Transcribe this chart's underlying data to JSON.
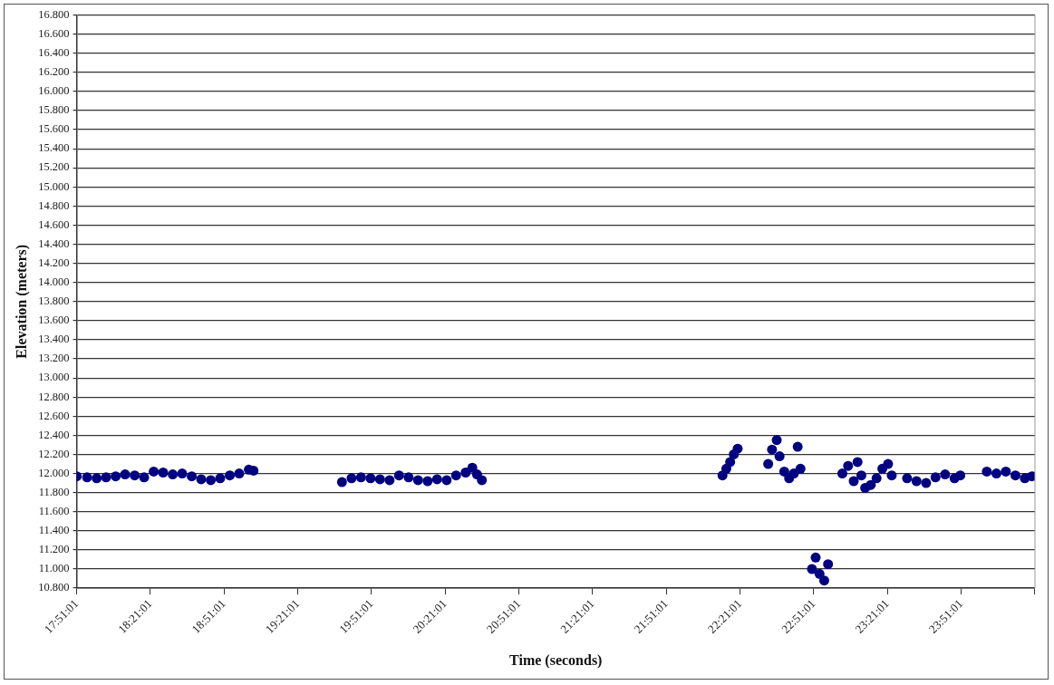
{
  "chart_data": {
    "type": "scatter",
    "xlabel": "Time (seconds)",
    "ylabel": "Elevation (meters)",
    "xlim": [
      17.8503,
      24.3503
    ],
    "xticks": [
      {
        "value": 17.8503,
        "label": "17:51:01"
      },
      {
        "value": 18.3503,
        "label": "18:21:01"
      },
      {
        "value": 18.8503,
        "label": "18:51:01"
      },
      {
        "value": 19.3503,
        "label": "19:21:01"
      },
      {
        "value": 19.8503,
        "label": "19:51:01"
      },
      {
        "value": 20.3503,
        "label": "20:21:01"
      },
      {
        "value": 20.8503,
        "label": "20:51:01"
      },
      {
        "value": 21.3503,
        "label": "21:21:01"
      },
      {
        "value": 21.8503,
        "label": "21:51:01"
      },
      {
        "value": 22.3503,
        "label": "22:21:01"
      },
      {
        "value": 22.8503,
        "label": "22:51:01"
      },
      {
        "value": 23.3503,
        "label": "23:21:01"
      },
      {
        "value": 23.8503,
        "label": "23:51:01"
      },
      {
        "value": 24.3503,
        "label": null
      }
    ],
    "ylim": [
      10.8,
      16.8
    ],
    "yticks": [
      {
        "value": 10.8,
        "label": "10.800"
      },
      {
        "value": 11.0,
        "label": "11.000"
      },
      {
        "value": 11.2,
        "label": "11.200"
      },
      {
        "value": 11.4,
        "label": "11.400"
      },
      {
        "value": 11.6,
        "label": "11.600"
      },
      {
        "value": 11.8,
        "label": "11.800"
      },
      {
        "value": 12.0,
        "label": "12.000"
      },
      {
        "value": 12.2,
        "label": "12.200"
      },
      {
        "value": 12.4,
        "label": "12.400"
      },
      {
        "value": 12.6,
        "label": "12.600"
      },
      {
        "value": 12.8,
        "label": "12.800"
      },
      {
        "value": 13.0,
        "label": "13.000"
      },
      {
        "value": 13.2,
        "label": "13.200"
      },
      {
        "value": 13.4,
        "label": "13.400"
      },
      {
        "value": 13.6,
        "label": "13.600"
      },
      {
        "value": 13.8,
        "label": "13.800"
      },
      {
        "value": 14.0,
        "label": "14.000"
      },
      {
        "value": 14.2,
        "label": "14.200"
      },
      {
        "value": 14.4,
        "label": "14.400"
      },
      {
        "value": 14.6,
        "label": "14.600"
      },
      {
        "value": 14.8,
        "label": "14.800"
      },
      {
        "value": 15.0,
        "label": "15.000"
      },
      {
        "value": 15.2,
        "label": "15.200"
      },
      {
        "value": 15.4,
        "label": "15.400"
      },
      {
        "value": 15.6,
        "label": "15.600"
      },
      {
        "value": 15.8,
        "label": "15.800"
      },
      {
        "value": 16.0,
        "label": "16.000"
      },
      {
        "value": 16.2,
        "label": "16.200"
      },
      {
        "value": 16.4,
        "label": "16.400"
      },
      {
        "value": 16.6,
        "label": "16.600"
      },
      {
        "value": 16.8,
        "label": "16.800"
      }
    ],
    "grid": "y",
    "marker": "circle",
    "legend": false,
    "series": [
      {
        "color": "#000080",
        "x": [
          17.851,
          17.921,
          17.986,
          18.05,
          18.115,
          18.179,
          18.244,
          18.308,
          18.373,
          18.437,
          18.502,
          18.566,
          18.631,
          18.695,
          18.76,
          18.824,
          18.889,
          18.953,
          19.018,
          19.05,
          19.65,
          19.715,
          19.779,
          19.844,
          19.908,
          19.973,
          20.037,
          20.102,
          20.166,
          20.231,
          20.295,
          20.36,
          20.424,
          20.489,
          20.534,
          20.566,
          20.599,
          22.231,
          22.257,
          22.283,
          22.308,
          22.334,
          22.541,
          22.567,
          22.599,
          22.618,
          22.65,
          22.683,
          22.715,
          22.741,
          22.76,
          22.838,
          22.863,
          22.889,
          22.921,
          22.947,
          23.044,
          23.083,
          23.121,
          23.147,
          23.173,
          23.199,
          23.237,
          23.276,
          23.315,
          23.354,
          23.379,
          23.483,
          23.547,
          23.612,
          23.676,
          23.741,
          23.805,
          23.844,
          24.024,
          24.089,
          24.153,
          24.218,
          24.282,
          24.33
        ],
        "values": [
          11.97,
          11.96,
          11.95,
          11.96,
          11.97,
          11.99,
          11.98,
          11.96,
          12.02,
          12.01,
          11.99,
          12.0,
          11.97,
          11.94,
          11.93,
          11.95,
          11.98,
          12.0,
          12.04,
          12.03,
          11.91,
          11.95,
          11.96,
          11.95,
          11.94,
          11.93,
          11.98,
          11.96,
          11.93,
          11.92,
          11.94,
          11.93,
          11.98,
          12.01,
          12.06,
          11.99,
          11.93,
          11.98,
          12.05,
          12.12,
          12.2,
          12.26,
          12.1,
          12.25,
          12.35,
          12.18,
          12.02,
          11.95,
          12.0,
          12.28,
          12.05,
          11.0,
          11.12,
          10.95,
          10.88,
          11.05,
          12.0,
          12.08,
          11.92,
          12.12,
          11.98,
          11.85,
          11.88,
          11.95,
          12.05,
          12.1,
          11.98,
          11.95,
          11.92,
          11.9,
          11.96,
          11.99,
          11.95,
          11.98,
          12.02,
          12.0,
          12.02,
          11.98,
          11.95,
          11.97
        ]
      }
    ]
  }
}
